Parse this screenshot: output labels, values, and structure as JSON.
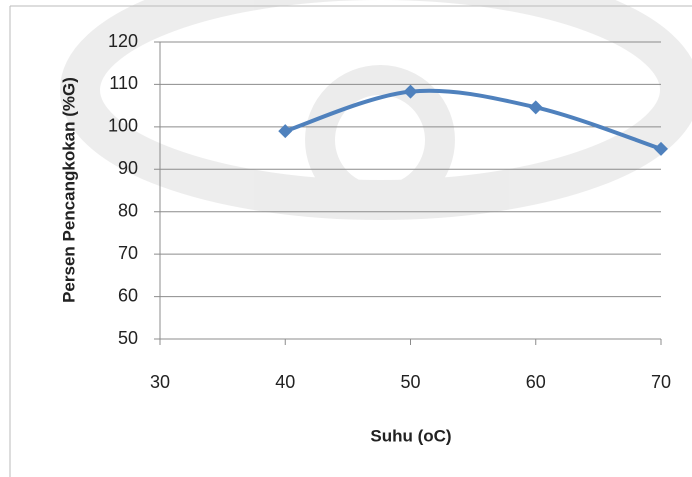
{
  "chart_data": {
    "type": "line",
    "x": [
      40,
      50,
      60,
      70
    ],
    "series": [
      {
        "color": "#4f81bd",
        "values": [
          99,
          108.3,
          104.6,
          94.8
        ]
      }
    ],
    "xlim": [
      30,
      70
    ],
    "xticks": [
      30,
      40,
      50,
      60,
      70
    ],
    "ylim": [
      50,
      120
    ],
    "yticks": [
      50,
      60,
      70,
      80,
      90,
      100,
      110,
      120
    ],
    "xlabel": "Suhu (oC)",
    "ylabel": "Persen Pencangkokan (%G)",
    "grid": true,
    "smooth": true
  }
}
